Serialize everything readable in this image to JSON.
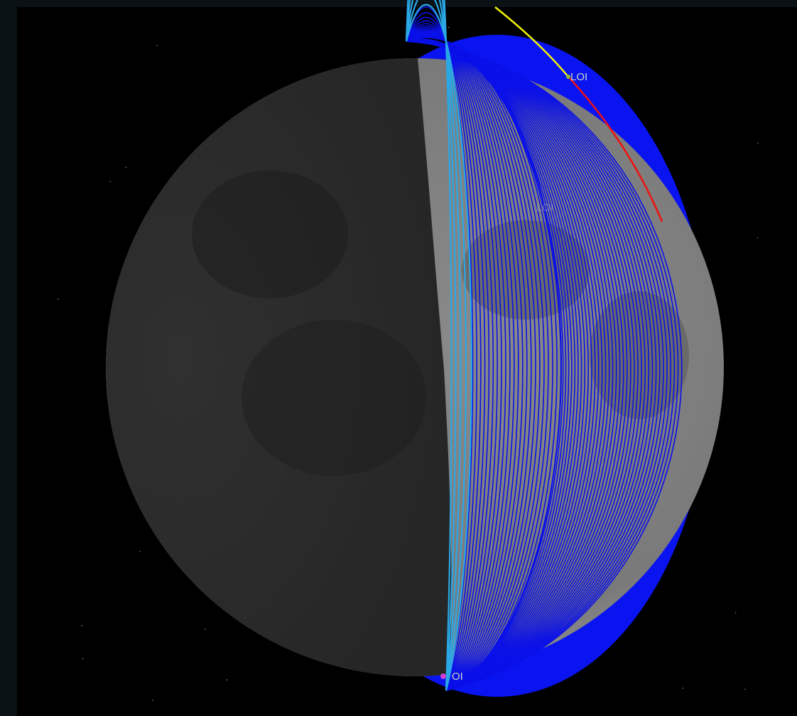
{
  "labels": [
    "LOI",
    "LOI",
    "OI"
  ]
}
